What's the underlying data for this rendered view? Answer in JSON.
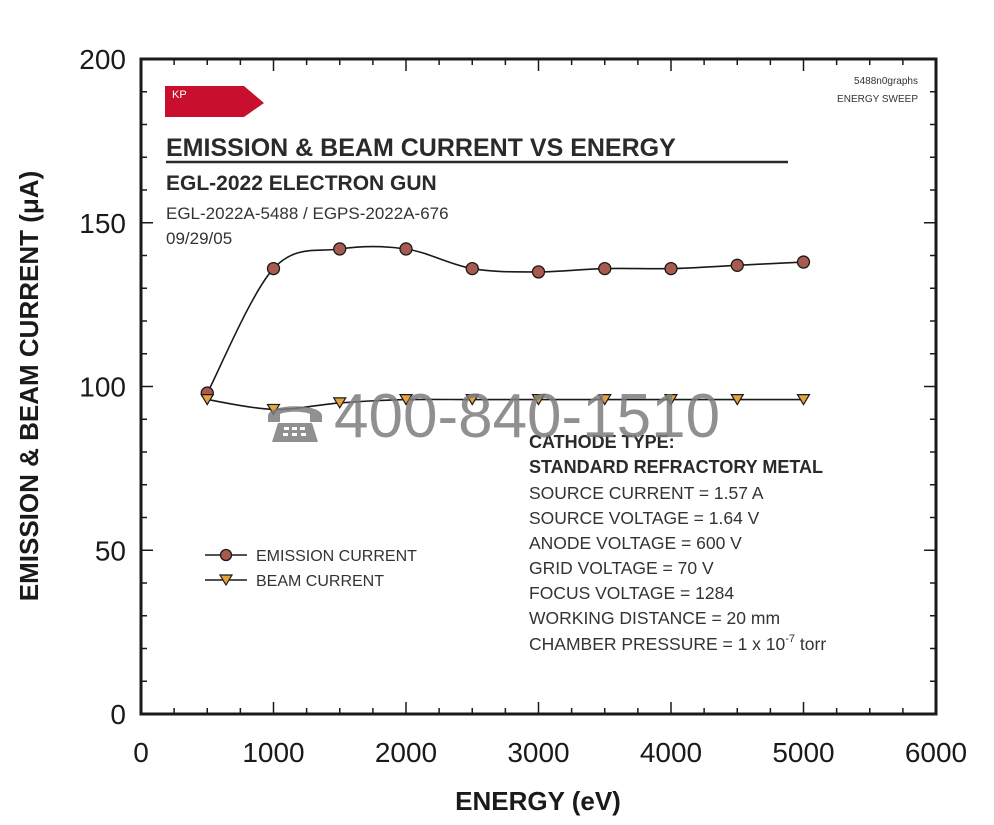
{
  "chart_data": {
    "type": "line",
    "title": "EMISSION & BEAM CURRENT VS ENERGY",
    "subtitle": "EGL-2022 ELECTRON GUN",
    "serials": "EGL-2022A-5488 /  EGPS-2022A-676",
    "date": "09/29/05",
    "corner_note": [
      "5488n0graphs",
      "ENERGY SWEEP"
    ],
    "logo_text": "KP",
    "xlabel": "ENERGY (eV)",
    "ylabel": "EMISSION & BEAM CURRENT (μA)",
    "xlim": [
      0,
      6000
    ],
    "ylim": [
      0,
      200
    ],
    "x_ticks": [
      "0",
      "1000",
      "2000",
      "3000",
      "4000",
      "5000",
      "6000"
    ],
    "y_ticks": [
      "0",
      "50",
      "100",
      "150",
      "200"
    ],
    "x": [
      500,
      1000,
      1500,
      2000,
      2500,
      3000,
      3500,
      4000,
      4500,
      5000
    ],
    "series": [
      {
        "name": "EMISSION CURRENT",
        "marker": "circle",
        "color": "#a85a4e",
        "values": [
          98,
          136,
          142,
          142,
          136,
          135,
          136,
          136,
          137,
          138
        ]
      },
      {
        "name": "BEAM CURRENT",
        "marker": "triangle-down",
        "color": "#e6a23c",
        "values": [
          96,
          93,
          95,
          96,
          96,
          96,
          96,
          96,
          96,
          96
        ]
      }
    ],
    "legend_position": "lower-left",
    "grid": false,
    "annotation": {
      "heading": [
        "CATHODE TYPE:",
        "STANDARD REFRACTORY METAL"
      ],
      "lines": [
        "SOURCE CURRENT = 1.57 A",
        "SOURCE VOLTAGE = 1.64 V",
        "ANODE VOLTAGE = 600 V",
        "GRID VOLTAGE = 70 V",
        "FOCUS VOLTAGE = 1284",
        "WORKING DISTANCE = 20 mm"
      ],
      "pressure": {
        "prefix": "CHAMBER PRESSURE = 1 x 10",
        "exponent": "-7",
        "suffix": " torr"
      }
    },
    "watermark": {
      "icon": "phone-icon",
      "text": "400-840-1510"
    },
    "colors": {
      "logo": "#c8102e",
      "emission_marker": "#a85a4e",
      "beam_marker": "#e6a23c"
    }
  }
}
